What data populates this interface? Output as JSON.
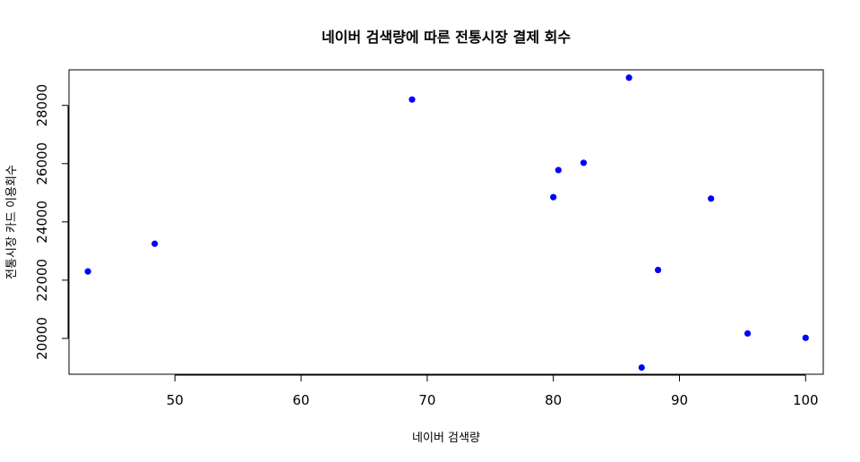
{
  "chart_data": {
    "type": "scatter",
    "title": "네이버 검색량에 따른 전통시장 결제 회수",
    "xlabel": "네이버 검색량",
    "ylabel": "전통시장 카드 이용회수",
    "xlim": [
      41.6,
      101.4
    ],
    "ylim": [
      18770,
      29220
    ],
    "xticks": [
      50,
      60,
      70,
      80,
      90,
      100
    ],
    "yticks": [
      20000,
      22000,
      24000,
      26000,
      28000
    ],
    "xtick_labels": [
      "50",
      "60",
      "70",
      "80",
      "90",
      "100"
    ],
    "ytick_labels": [
      "20000",
      "22000",
      "24000",
      "26000",
      "28000"
    ],
    "point_color": "#0000ff",
    "points": [
      {
        "x": 43.1,
        "y": 22300
      },
      {
        "x": 48.4,
        "y": 23250
      },
      {
        "x": 68.8,
        "y": 28200
      },
      {
        "x": 80.0,
        "y": 24850
      },
      {
        "x": 80.4,
        "y": 25780
      },
      {
        "x": 82.4,
        "y": 26030
      },
      {
        "x": 86.0,
        "y": 28950
      },
      {
        "x": 87.0,
        "y": 19000
      },
      {
        "x": 88.3,
        "y": 22350
      },
      {
        "x": 92.5,
        "y": 24800
      },
      {
        "x": 95.4,
        "y": 20170
      },
      {
        "x": 100.0,
        "y": 20020
      }
    ]
  }
}
